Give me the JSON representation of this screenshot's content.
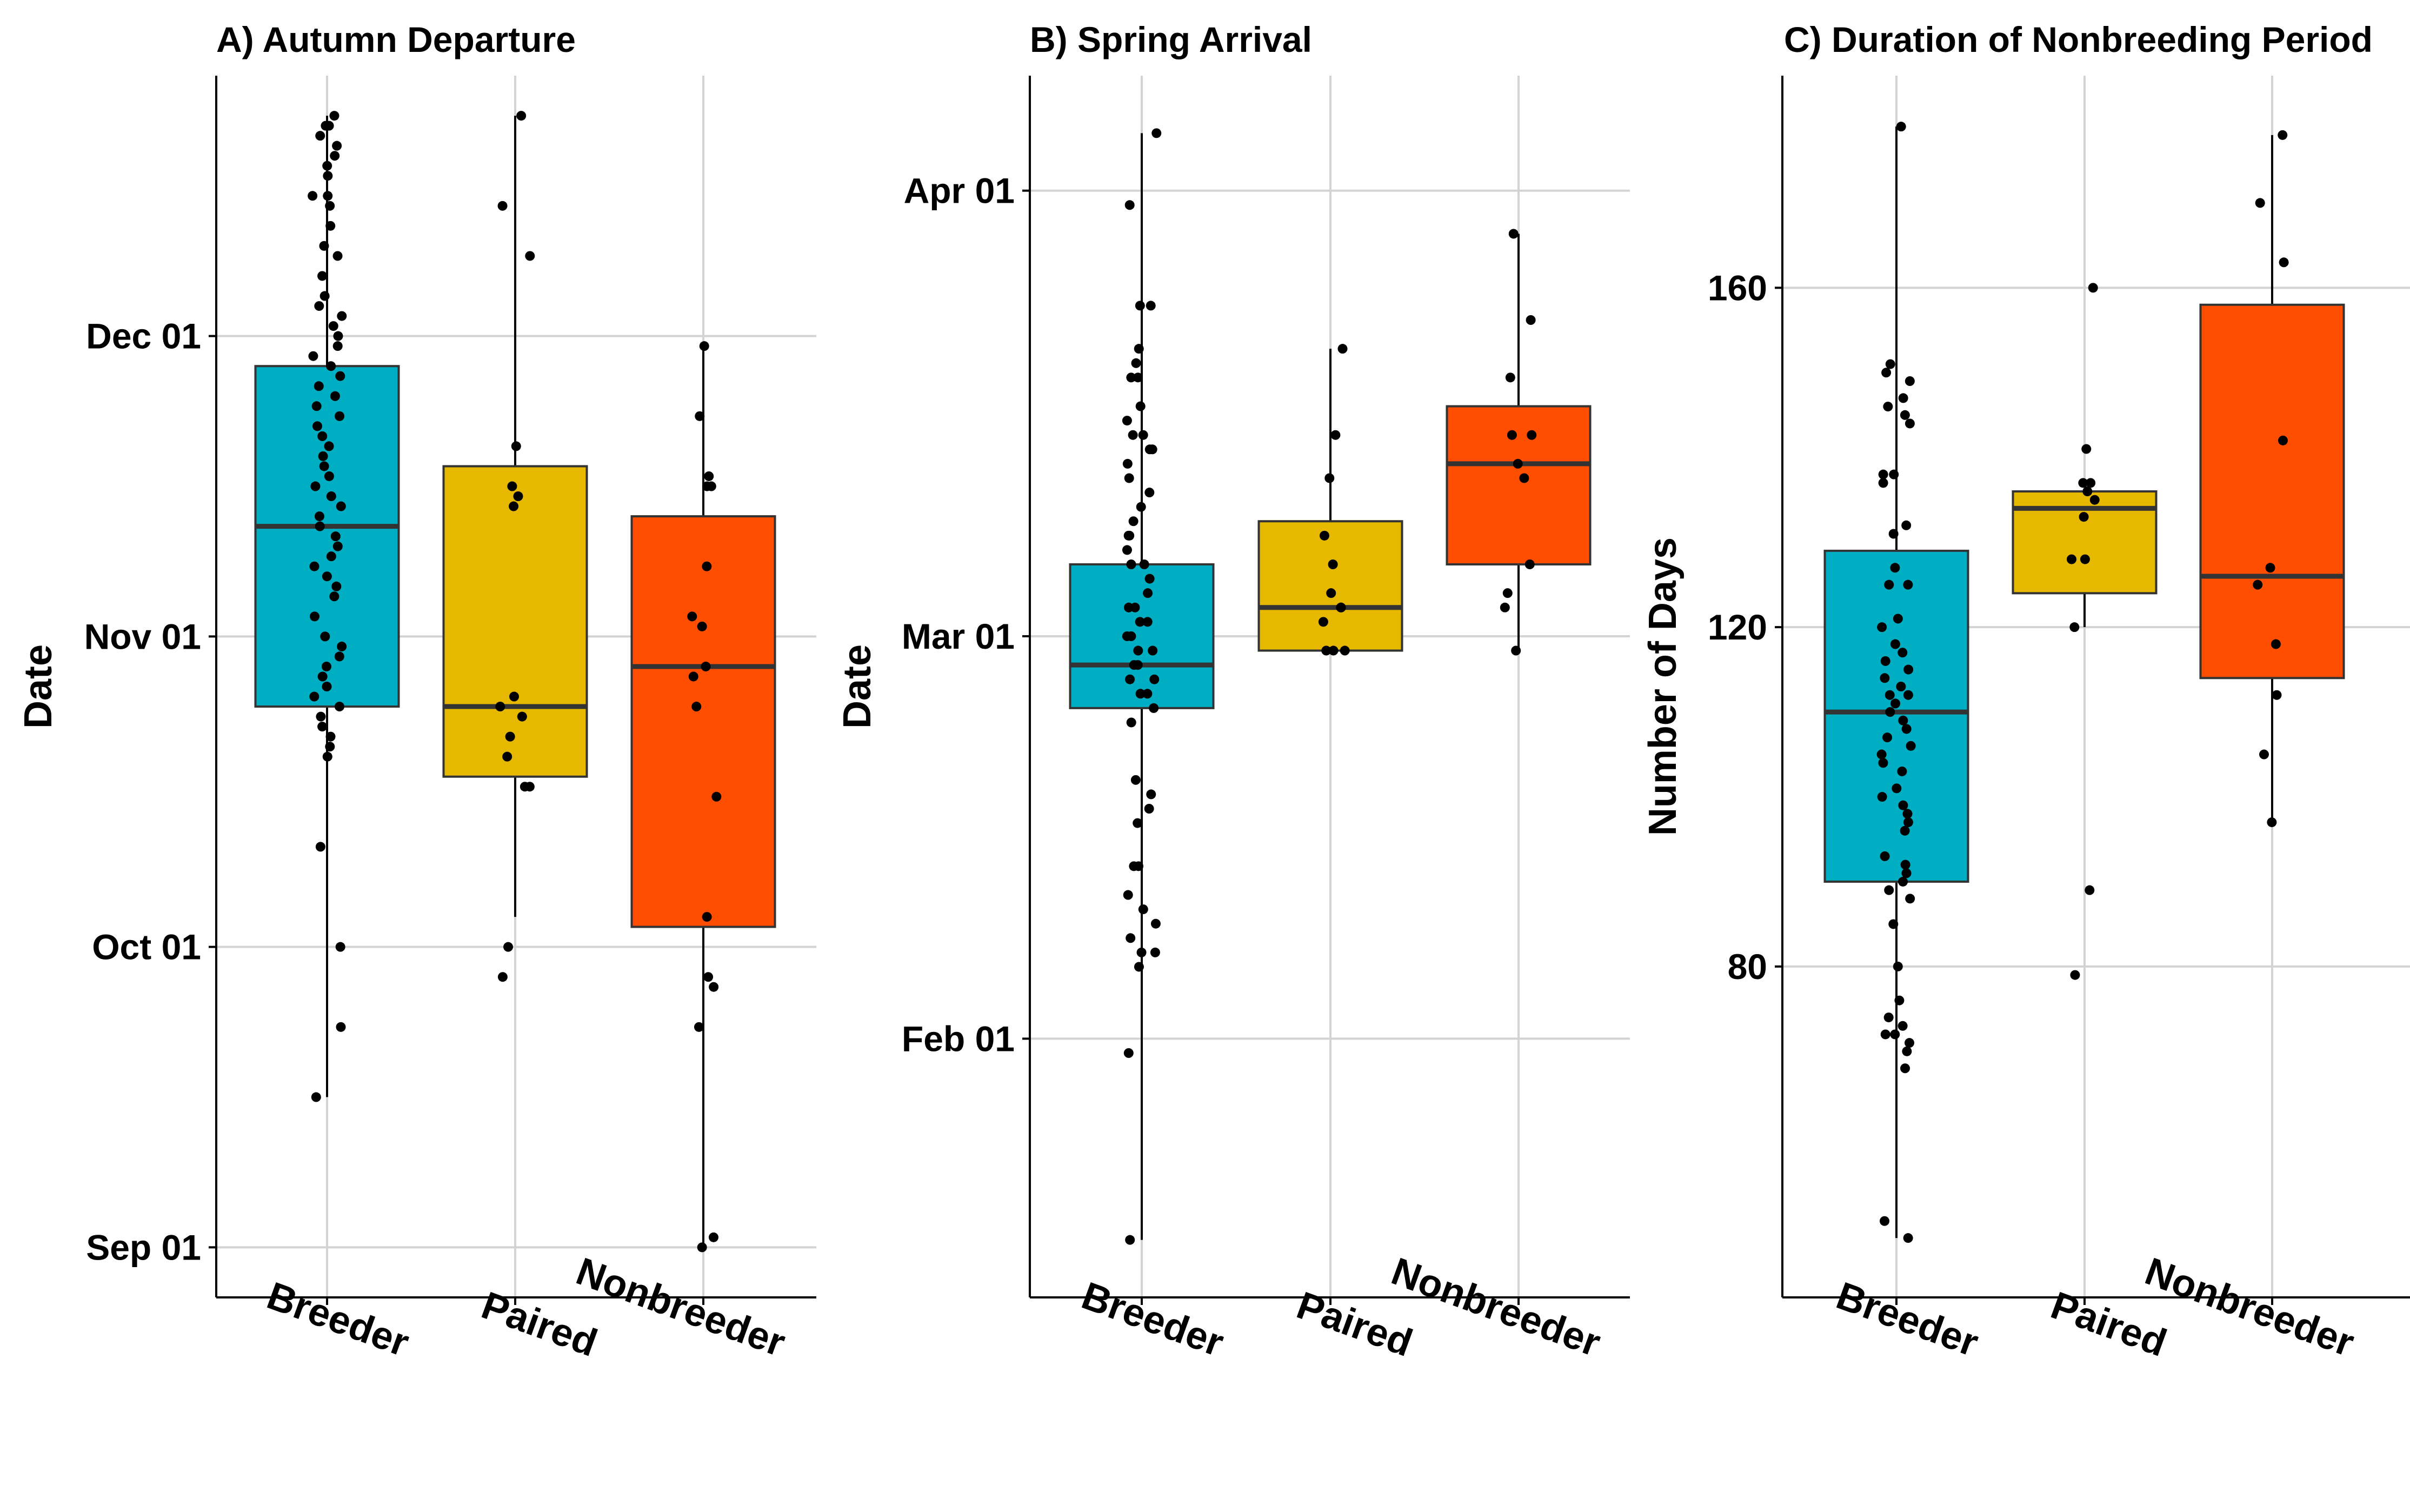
{
  "chart_data": [
    {
      "panel": "A",
      "type": "box",
      "title": "A) Autumn Departure",
      "ylabel": "Date",
      "xlabel": "",
      "y_unit": "date",
      "ylim": [
        "2020-08-27",
        "2020-12-27"
      ],
      "yticks": [
        "2020-09-01",
        "2020-10-01",
        "2020-11-01",
        "2020-12-01"
      ],
      "ytick_labels": [
        "Sep 01",
        "Oct 01",
        "Nov 01",
        "Dec 01"
      ],
      "categories": [
        "Breeder",
        "Paired",
        "Nonbreeder"
      ],
      "colors": [
        "#00AEC3",
        "#E6B800",
        "#FF4E00"
      ],
      "grid": true,
      "boxes": [
        {
          "category": "Breeder",
          "whisker_low": "2020-09-16",
          "q1": "2020-10-25",
          "median": "2020-11-12",
          "q3": "2020-11-28",
          "whisker_high": "2020-12-23"
        },
        {
          "category": "Paired",
          "whisker_low": "2020-10-04",
          "q1": "2020-10-18",
          "median": "2020-10-25",
          "q3": "2020-11-18",
          "whisker_high": "2020-12-23"
        },
        {
          "category": "Nonbreeder",
          "whisker_low": "2020-09-01",
          "q1": "2020-10-03",
          "median": "2020-10-29",
          "q3": "2020-11-13",
          "whisker_high": "2020-11-30"
        }
      ],
      "points": [
        {
          "category": "Breeder",
          "y": [
            "2020-12-23",
            "2020-12-22",
            "2020-12-22",
            "2020-12-21",
            "2020-12-20",
            "2020-12-19",
            "2020-12-18",
            "2020-12-17",
            "2020-12-15",
            "2020-12-15",
            "2020-12-14",
            "2020-12-12",
            "2020-12-10",
            "2020-12-09",
            "2020-12-07",
            "2020-12-05",
            "2020-12-04",
            "2020-12-03",
            "2020-12-02",
            "2020-12-01",
            "2020-11-30",
            "2020-11-29",
            "2020-11-28",
            "2020-11-27",
            "2020-11-26",
            "2020-11-25",
            "2020-11-24",
            "2020-11-23",
            "2020-11-22",
            "2020-11-21",
            "2020-11-20",
            "2020-11-19",
            "2020-11-18",
            "2020-11-17",
            "2020-11-16",
            "2020-11-15",
            "2020-11-14",
            "2020-11-13",
            "2020-11-12",
            "2020-11-11",
            "2020-11-10",
            "2020-11-09",
            "2020-11-08",
            "2020-11-07",
            "2020-11-06",
            "2020-11-05",
            "2020-11-03",
            "2020-11-01",
            "2020-10-31",
            "2020-10-30",
            "2020-10-29",
            "2020-10-28",
            "2020-10-27",
            "2020-10-26",
            "2020-10-25",
            "2020-10-24",
            "2020-10-23",
            "2020-10-22",
            "2020-10-21",
            "2020-10-20",
            "2020-10-11",
            "2020-10-01",
            "2020-09-23",
            "2020-09-16"
          ]
        },
        {
          "category": "Paired",
          "y": [
            "2020-12-23",
            "2020-12-14",
            "2020-12-09",
            "2020-11-20",
            "2020-11-16",
            "2020-11-15",
            "2020-11-14",
            "2020-10-26",
            "2020-10-25",
            "2020-10-24",
            "2020-10-22",
            "2020-10-20",
            "2020-10-17",
            "2020-10-17",
            "2020-10-01",
            "2020-09-28"
          ]
        },
        {
          "category": "Nonbreeder",
          "y": [
            "2020-11-30",
            "2020-11-23",
            "2020-11-17",
            "2020-11-16",
            "2020-11-16",
            "2020-11-08",
            "2020-11-03",
            "2020-11-02",
            "2020-10-29",
            "2020-10-28",
            "2020-10-25",
            "2020-10-16",
            "2020-10-04",
            "2020-09-28",
            "2020-09-27",
            "2020-09-23",
            "2020-09-02",
            "2020-09-01"
          ]
        }
      ]
    },
    {
      "panel": "B",
      "type": "box",
      "title": "B) Spring Arrival",
      "ylabel": "Date",
      "xlabel": "",
      "y_unit": "date",
      "ylim": [
        "2021-01-14",
        "2021-04-09"
      ],
      "yticks": [
        "2021-02-01",
        "2021-03-01",
        "2021-04-01"
      ],
      "ytick_labels": [
        "Feb 01",
        "Mar 01",
        "Apr 01"
      ],
      "categories": [
        "Breeder",
        "Paired",
        "Nonbreeder"
      ],
      "colors": [
        "#00AEC3",
        "#E6B800",
        "#FF4E00"
      ],
      "grid": true,
      "boxes": [
        {
          "category": "Breeder",
          "whisker_low": "2021-01-18",
          "q1": "2021-02-24",
          "median": "2021-02-27",
          "q3": "2021-03-06",
          "whisker_high": "2021-04-05"
        },
        {
          "category": "Paired",
          "whisker_low": "2021-02-28",
          "q1": "2021-02-28",
          "median": "2021-03-03",
          "q3": "2021-03-09",
          "whisker_high": "2021-03-21"
        },
        {
          "category": "Nonbreeder",
          "whisker_low": "2021-02-28",
          "q1": "2021-03-06",
          "median": "2021-03-13",
          "q3": "2021-03-17",
          "whisker_high": "2021-03-29"
        }
      ],
      "points": [
        {
          "category": "Breeder",
          "y": [
            "2021-04-05",
            "2021-03-31",
            "2021-03-24",
            "2021-03-24",
            "2021-03-21",
            "2021-03-20",
            "2021-03-19",
            "2021-03-19",
            "2021-03-17",
            "2021-03-16",
            "2021-03-15",
            "2021-03-15",
            "2021-03-14",
            "2021-03-14",
            "2021-03-13",
            "2021-03-12",
            "2021-03-11",
            "2021-03-10",
            "2021-03-09",
            "2021-03-08",
            "2021-03-08",
            "2021-03-07",
            "2021-03-06",
            "2021-03-06",
            "2021-03-05",
            "2021-03-04",
            "2021-03-03",
            "2021-03-03",
            "2021-03-02",
            "2021-03-02",
            "2021-03-01",
            "2021-03-01",
            "2021-02-28",
            "2021-02-28",
            "2021-02-27",
            "2021-02-27",
            "2021-02-26",
            "2021-02-26",
            "2021-02-25",
            "2021-02-25",
            "2021-02-24",
            "2021-02-23",
            "2021-02-19",
            "2021-02-18",
            "2021-02-17",
            "2021-02-16",
            "2021-02-13",
            "2021-02-13",
            "2021-02-11",
            "2021-02-10",
            "2021-02-09",
            "2021-02-08",
            "2021-02-07",
            "2021-02-07",
            "2021-02-06",
            "2021-01-31",
            "2021-01-18"
          ]
        },
        {
          "category": "Paired",
          "y": [
            "2021-03-21",
            "2021-03-15",
            "2021-03-12",
            "2021-03-08",
            "2021-03-06",
            "2021-03-04",
            "2021-03-03",
            "2021-03-03",
            "2021-03-02",
            "2021-02-28",
            "2021-02-28",
            "2021-02-28"
          ]
        },
        {
          "category": "Nonbreeder",
          "y": [
            "2021-03-29",
            "2021-03-23",
            "2021-03-19",
            "2021-03-15",
            "2021-03-15",
            "2021-03-13",
            "2021-03-12",
            "2021-03-06",
            "2021-03-04",
            "2021-03-03",
            "2021-02-28"
          ]
        }
      ]
    },
    {
      "panel": "C",
      "type": "box",
      "title": "C) Duration of Nonbreeding Period",
      "ylabel": "Number of Days",
      "xlabel": "",
      "y_unit": "days",
      "ylim": [
        41,
        185
      ],
      "yticks": [
        80,
        120,
        160
      ],
      "ytick_labels": [
        "80",
        "120",
        "160"
      ],
      "categories": [
        "Breeder",
        "Paired",
        "Nonbreeder"
      ],
      "colors": [
        "#00AEC3",
        "#E6B800",
        "#FF4E00"
      ],
      "grid": true,
      "boxes": [
        {
          "category": "Breeder",
          "whisker_low": 48,
          "q1": 90,
          "median": 110,
          "q3": 129,
          "whisker_high": 179
        },
        {
          "category": "Paired",
          "whisker_low": 120,
          "q1": 124,
          "median": 134,
          "q3": 136,
          "whisker_high": 136
        },
        {
          "category": "Nonbreeder",
          "whisker_low": 97,
          "q1": 114,
          "median": 126,
          "q3": 158,
          "whisker_high": 178
        }
      ],
      "points": [
        {
          "category": "Breeder",
          "y": [
            179,
            151,
            150,
            149,
            147,
            146,
            145,
            144,
            138,
            138,
            137,
            132,
            131,
            127,
            125,
            125,
            121,
            120,
            118,
            117,
            116,
            115,
            114,
            113,
            112,
            112,
            111,
            110,
            109,
            108,
            107,
            106,
            105,
            104,
            103,
            101,
            100,
            99,
            98,
            97,
            96,
            93,
            92,
            91,
            90,
            89,
            88,
            85,
            80,
            76,
            74,
            73,
            72,
            72,
            71,
            70,
            68,
            50,
            48
          ]
        },
        {
          "category": "Paired",
          "y": [
            160,
            141,
            137,
            137,
            136,
            135,
            133,
            128,
            128,
            120,
            89,
            79
          ]
        },
        {
          "category": "Nonbreeder",
          "y": [
            178,
            170,
            163,
            142,
            127,
            125,
            118,
            112,
            105,
            97
          ]
        }
      ]
    }
  ]
}
